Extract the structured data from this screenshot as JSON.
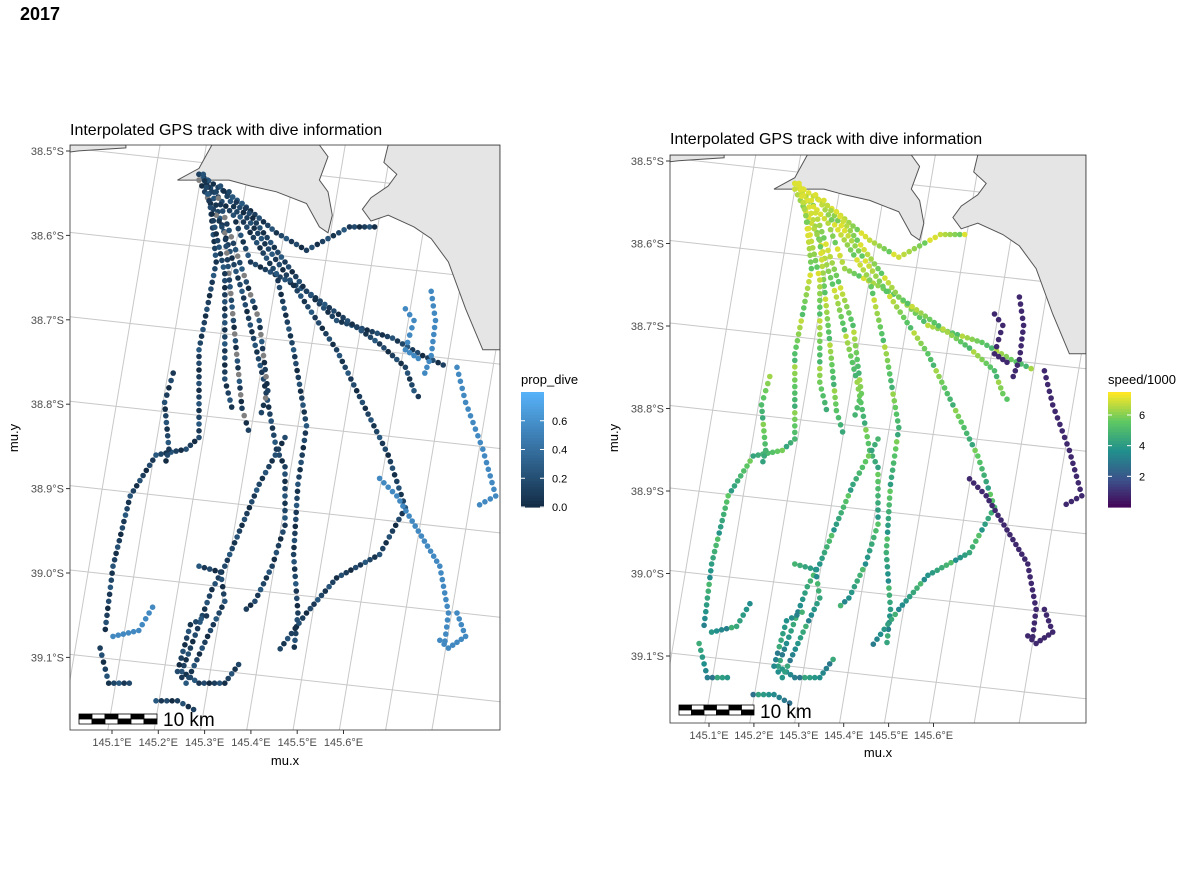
{
  "figure_title": "2017",
  "land_color": "#e5e5e5",
  "grid_color": "#c8c8c8",
  "missing_color": "#808080",
  "scalebar_label": "10 km",
  "chart_data": [
    {
      "type": "scatter",
      "title": "Interpolated GPS track with dive information",
      "xlabel": "mu.x",
      "ylabel": "mu.y",
      "x_ticks": [
        "145.1°E",
        "145.2°E",
        "145.3°E",
        "145.4°E",
        "145.5°E",
        "145.6°E"
      ],
      "y_ticks": [
        "38.5°S",
        "38.6°S",
        "38.7°S",
        "38.8°S",
        "38.9°S",
        "39.0°S",
        "39.1°S"
      ],
      "legend": {
        "title": "prop_dive",
        "position": "right",
        "ticks": [
          "0.0",
          "0.2",
          "0.4",
          "0.6"
        ],
        "colors": [
          "#132b43",
          "#56b1f7"
        ],
        "range": [
          0,
          0.8
        ]
      }
    },
    {
      "type": "scatter",
      "title": "Interpolated GPS track with dive information",
      "xlabel": "mu.x",
      "ylabel": "mu.y",
      "x_ticks": [
        "145.1°E",
        "145.2°E",
        "145.3°E",
        "145.4°E",
        "145.5°E",
        "145.6°E"
      ],
      "y_ticks": [
        "38.5°S",
        "38.6°S",
        "38.7°S",
        "38.8°S",
        "38.9°S",
        "39.0°S",
        "39.1°S"
      ],
      "legend": {
        "title": "speed/1000",
        "position": "right",
        "ticks": [
          "2",
          "4",
          "6"
        ],
        "colors": [
          "#440154",
          "#3b528b",
          "#21908c",
          "#5dc863",
          "#fde725"
        ],
        "range": [
          0,
          7.5
        ]
      }
    }
  ]
}
